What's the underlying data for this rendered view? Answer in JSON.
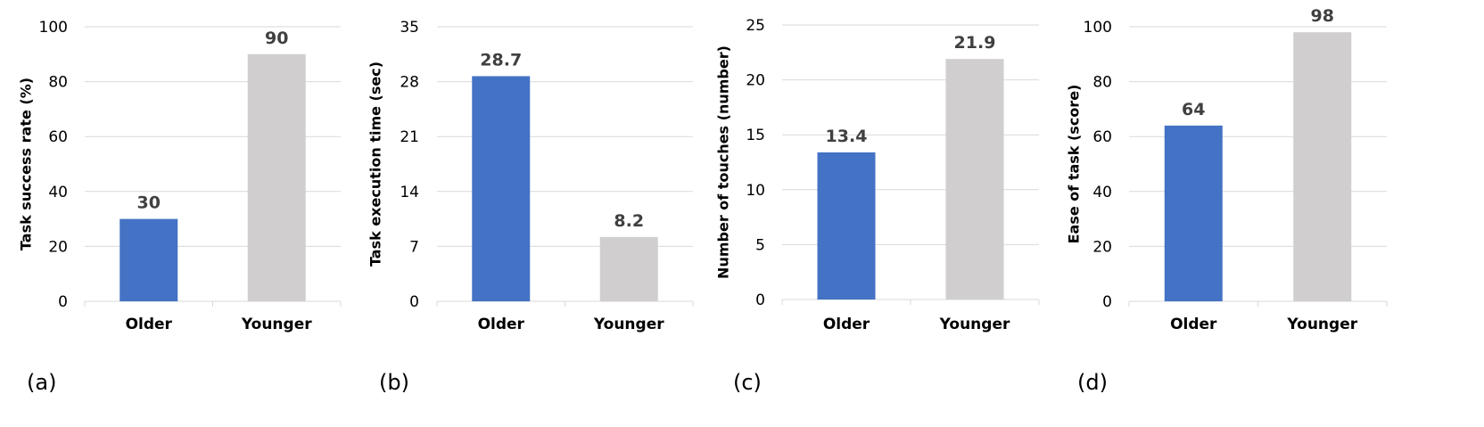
{
  "chart_data": [
    {
      "type": "bar",
      "panel_label": "(a)",
      "categories": [
        "Older",
        "Younger"
      ],
      "values": [
        30,
        90
      ],
      "data_labels": [
        "30",
        "90"
      ],
      "bar_colors": [
        "#4472C4",
        "#D0CECE"
      ],
      "ylabel": "Task success rate (%)",
      "ylim": [
        0,
        100
      ],
      "yticks": [
        "0",
        "20",
        "40",
        "60",
        "80",
        "100"
      ],
      "grid": true
    },
    {
      "type": "bar",
      "panel_label": "(b)",
      "categories": [
        "Older",
        "Younger"
      ],
      "values": [
        28.7,
        8.2
      ],
      "data_labels": [
        "28.7",
        "8.2"
      ],
      "bar_colors": [
        "#4472C4",
        "#D0CECE"
      ],
      "ylabel": "Task execution time (sec)",
      "ylim": [
        0,
        35
      ],
      "yticks": [
        "0",
        "7",
        "14",
        "21",
        "28",
        "35"
      ],
      "grid": true
    },
    {
      "type": "bar",
      "panel_label": "(c)",
      "categories": [
        "Older",
        "Younger"
      ],
      "values": [
        13.4,
        21.9
      ],
      "data_labels": [
        "13.4",
        "21.9"
      ],
      "bar_colors": [
        "#4472C4",
        "#D0CECE"
      ],
      "ylabel": "Number of touches (number)",
      "ylim": [
        0,
        25
      ],
      "yticks": [
        "0",
        "5",
        "10",
        "15",
        "20",
        "25"
      ],
      "grid": true
    },
    {
      "type": "bar",
      "panel_label": "(d)",
      "categories": [
        "Older",
        "Younger"
      ],
      "values": [
        64,
        98
      ],
      "data_labels": [
        "64",
        "98"
      ],
      "bar_colors": [
        "#4472C4",
        "#D0CECE"
      ],
      "ylabel": "Ease of task (score)",
      "ylim": [
        0,
        100
      ],
      "yticks": [
        "0",
        "20",
        "40",
        "60",
        "80",
        "100"
      ],
      "grid": true
    }
  ],
  "colors": {
    "older_bar": "#4472C4",
    "younger_bar": "#D0CECE",
    "gridline": "#D9D9D9",
    "data_label": "#404040"
  }
}
